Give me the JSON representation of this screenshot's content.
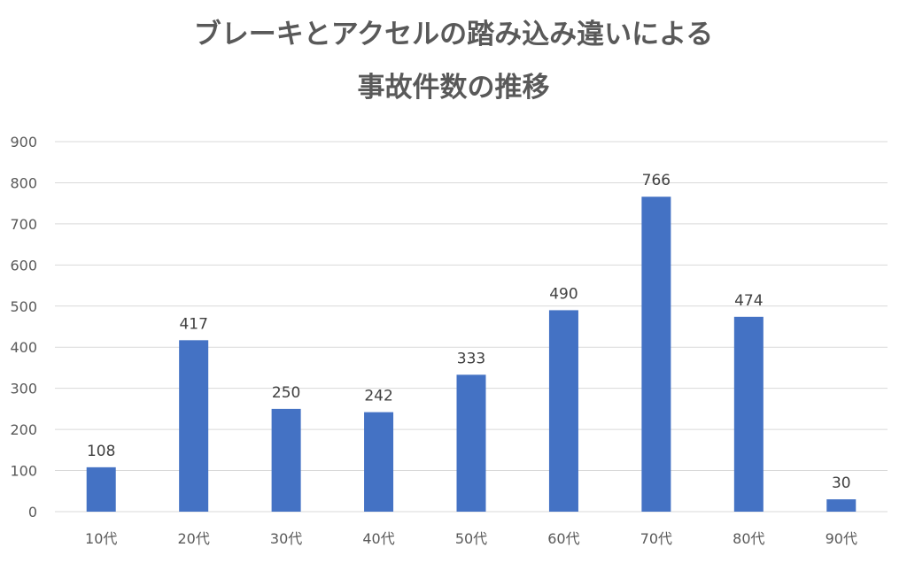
{
  "title_lines": [
    "ブレーキとアクセルの踏み込み違いによる",
    "事故件数の推移"
  ],
  "chart_data": {
    "type": "bar",
    "title": "ブレーキとアクセルの踏み込み違いによる事故件数の推移",
    "categories": [
      "10代",
      "20代",
      "30代",
      "40代",
      "50代",
      "60代",
      "70代",
      "80代",
      "90代"
    ],
    "values": [
      108,
      417,
      250,
      242,
      333,
      490,
      766,
      474,
      30
    ],
    "xlabel": "",
    "ylabel": "",
    "ylim": [
      0,
      900
    ],
    "yticks": [
      0,
      100,
      200,
      300,
      400,
      500,
      600,
      700,
      800,
      900
    ],
    "grid": true,
    "legend": "none",
    "data_labels": true,
    "bar_color": "#4472C4",
    "grid_color": "#D9D9D9"
  }
}
